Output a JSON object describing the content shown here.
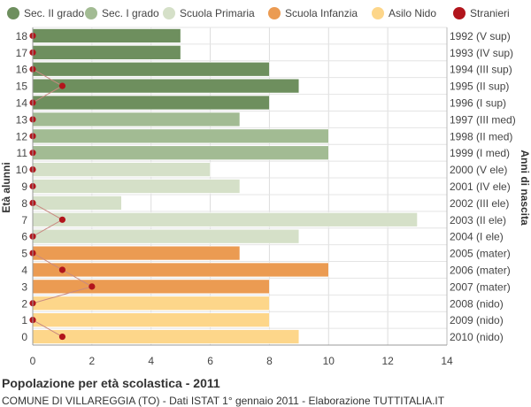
{
  "chart_data": {
    "type": "bar",
    "orientation": "horizontal",
    "title": "Popolazione per età scolastica - 2011",
    "subtitle": "COMUNE DI VILLAREGGIA (TO) - Dati ISTAT 1° gennaio 2011 - Elaborazione TUTTITALIA.IT",
    "ylabel": "Età alunni",
    "ylabel_right": "Anni di nascita",
    "xlim": [
      0,
      14
    ],
    "xticks": [
      0,
      2,
      4,
      6,
      8,
      10,
      12,
      14
    ],
    "grid": true,
    "legend_position": "top",
    "legend": [
      {
        "name": "Sec. II grado",
        "color": "#6e8f5e"
      },
      {
        "name": "Sec. I grado",
        "color": "#a2bb93"
      },
      {
        "name": "Scuola Primaria",
        "color": "#d5e0c8"
      },
      {
        "name": "Scuola Infanzia",
        "color": "#eb9b52"
      },
      {
        "name": "Asilo Nido",
        "color": "#fdd68a"
      },
      {
        "name": "Stranieri",
        "color": "#b2151c"
      }
    ],
    "ages": [
      "18",
      "17",
      "16",
      "15",
      "14",
      "13",
      "12",
      "11",
      "10",
      "9",
      "8",
      "7",
      "6",
      "5",
      "4",
      "3",
      "2",
      "1",
      "0"
    ],
    "birth_years": [
      "1992 (V sup)",
      "1993 (IV sup)",
      "1994 (III sup)",
      "1995 (II sup)",
      "1996 (I sup)",
      "1997 (III med)",
      "1998 (II med)",
      "1999 (I med)",
      "2000 (V ele)",
      "2001 (IV ele)",
      "2002 (III ele)",
      "2003 (II ele)",
      "2004 (I ele)",
      "2005 (mater)",
      "2006 (mater)",
      "2007 (mater)",
      "2008 (nido)",
      "2009 (nido)",
      "2010 (nido)"
    ],
    "values": [
      5,
      5,
      8,
      9,
      8,
      7,
      10,
      10,
      6,
      7,
      3,
      13,
      9,
      7,
      10,
      8,
      8,
      8,
      9
    ],
    "groups": [
      0,
      0,
      0,
      0,
      0,
      1,
      1,
      1,
      2,
      2,
      2,
      2,
      2,
      3,
      3,
      3,
      4,
      4,
      4
    ],
    "stranieri": [
      0,
      0,
      0,
      1,
      0,
      0,
      0,
      0,
      0,
      0,
      0,
      1,
      0,
      0,
      1,
      2,
      0,
      0,
      1
    ]
  }
}
